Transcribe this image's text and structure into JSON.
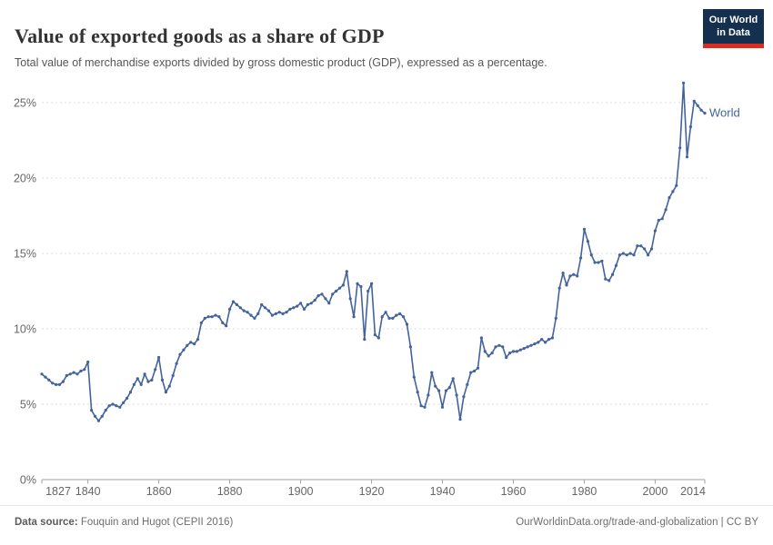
{
  "header": {
    "title": "Value of exported goods as a share of GDP",
    "subtitle": "Total value of merchandise exports divided by gross domestic product (GDP), expressed as a percentage.",
    "logo": {
      "line1": "Our World",
      "line2": "in Data"
    }
  },
  "colors": {
    "line": "#43639C",
    "grid": "#dcdcdc",
    "axis": "#a2a2a2",
    "tick_label": "#666666",
    "title": "#333333",
    "subtitle": "#565656",
    "footer": "#6e6e6e",
    "logo_bg": "#15304F",
    "logo_accent": "#DC2C20"
  },
  "chart_data": {
    "type": "line",
    "title": "Value of exported goods as a share of GDP",
    "subtitle": "Total value of merchandise exports divided by gross domestic product (GDP), expressed as a percentage.",
    "xlabel": "",
    "ylabel": "",
    "xlim": [
      1827,
      2014
    ],
    "ylim": [
      0,
      26.5
    ],
    "grid": "dashed-horizontal",
    "x_ticks": [
      1827,
      1840,
      1860,
      1880,
      1900,
      1920,
      1940,
      1960,
      1980,
      2000,
      2014
    ],
    "y_ticks": [
      0,
      5,
      10,
      15,
      20,
      25
    ],
    "y_tick_suffix": "%",
    "legend_position": "end-of-line-label",
    "years_start": 1827,
    "years_end": 2014,
    "series": [
      {
        "name": "World",
        "color": "#43639C",
        "values": [
          7.0,
          6.8,
          6.6,
          6.4,
          6.3,
          6.3,
          6.5,
          6.9,
          7.0,
          7.1,
          7.0,
          7.2,
          7.3,
          7.8,
          4.6,
          4.2,
          3.9,
          4.2,
          4.6,
          4.9,
          5.0,
          4.9,
          4.8,
          5.1,
          5.4,
          5.8,
          6.3,
          6.7,
          6.3,
          7.0,
          6.5,
          6.6,
          7.3,
          8.1,
          6.6,
          5.8,
          6.2,
          6.9,
          7.7,
          8.3,
          8.6,
          8.9,
          9.1,
          9.0,
          9.3,
          10.4,
          10.7,
          10.8,
          10.8,
          10.9,
          10.8,
          10.4,
          10.2,
          11.3,
          11.8,
          11.6,
          11.4,
          11.2,
          11.1,
          10.9,
          10.7,
          11.0,
          11.6,
          11.4,
          11.2,
          10.9,
          11.0,
          11.1,
          11.0,
          11.1,
          11.3,
          11.4,
          11.5,
          11.7,
          11.3,
          11.6,
          11.7,
          11.9,
          12.2,
          12.3,
          12.0,
          11.7,
          12.3,
          12.5,
          12.7,
          12.9,
          13.8,
          12.0,
          10.8,
          13.0,
          12.8,
          9.3,
          12.5,
          13.0,
          9.6,
          9.4,
          10.8,
          11.1,
          10.7,
          10.7,
          10.9,
          11.0,
          10.8,
          10.3,
          8.8,
          6.8,
          5.8,
          4.9,
          4.8,
          5.6,
          7.1,
          6.2,
          5.9,
          4.8,
          5.9,
          6.1,
          6.7,
          5.6,
          4.0,
          5.5,
          6.3,
          7.1,
          7.2,
          7.4,
          9.4,
          8.5,
          8.2,
          8.4,
          8.8,
          8.9,
          8.8,
          8.1,
          8.4,
          8.5,
          8.5,
          8.6,
          8.7,
          8.8,
          8.9,
          9.0,
          9.1,
          9.3,
          9.1,
          9.3,
          9.4,
          10.7,
          12.7,
          13.7,
          12.9,
          13.5,
          13.6,
          13.5,
          14.7,
          16.6,
          15.8,
          14.9,
          14.4,
          14.4,
          14.5,
          13.3,
          13.2,
          13.6,
          14.2,
          14.9,
          15.0,
          14.9,
          15.0,
          14.9,
          15.5,
          15.5,
          15.3,
          14.9,
          15.3,
          16.5,
          17.2,
          17.3,
          17.9,
          18.7,
          19.1,
          19.5,
          22.0,
          26.3,
          21.4,
          23.4,
          25.1,
          24.8,
          24.5,
          24.3
        ]
      }
    ]
  },
  "footer": {
    "source_label": "Data source:",
    "source_text": " Fouquin and Hugot (CEPII 2016)",
    "right_text": "OurWorldinData.org/trade-and-globalization | CC BY"
  }
}
